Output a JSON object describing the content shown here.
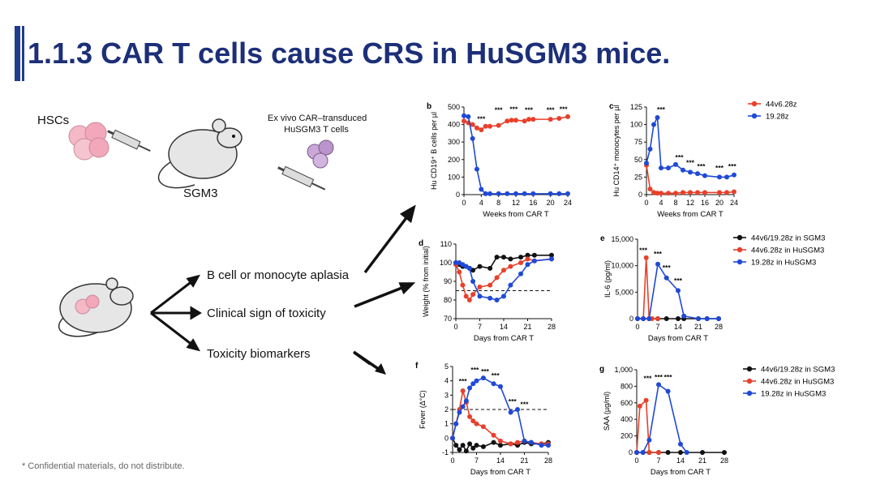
{
  "slide": {
    "title": "1.1.3 CAR T cells cause CRS in HuSGM3 mice.",
    "footnote": "* Confidential materials, do not distribute."
  },
  "diagram": {
    "hscs": "HSCs",
    "sgm3": "SGM3",
    "car_line1": "Ex vivo CAR–transduced",
    "car_line2": "HuSGM3 T cells",
    "outcomes": [
      "B cell or monocyte aplasia",
      "Clinical sign of toxicity",
      "Toxicity biomarkers"
    ]
  },
  "colors": {
    "red": "#e8402a",
    "blue": "#1f49d6",
    "black": "#111111",
    "title": "#1c2f78"
  },
  "chart_data": [
    {
      "panel": "b",
      "type": "line",
      "ylabel": "Hu CD19⁺ B cells per µl",
      "xlabel": "Weeks from CAR T",
      "xlim": [
        0,
        24
      ],
      "ylim": [
        0,
        500
      ],
      "xticks": [
        0,
        4,
        8,
        12,
        16,
        20,
        24
      ],
      "yticks": [
        0,
        100,
        200,
        300,
        400,
        500
      ],
      "series": [
        {
          "color": "red",
          "x": [
            0,
            1,
            2,
            3,
            4,
            5,
            6,
            8,
            10,
            11,
            12,
            14,
            15,
            16,
            20,
            22,
            24
          ],
          "y": [
            420,
            410,
            400,
            380,
            370,
            390,
            390,
            395,
            420,
            425,
            425,
            420,
            430,
            430,
            430,
            435,
            445
          ]
        },
        {
          "color": "blue",
          "x": [
            0,
            1,
            2,
            3,
            4,
            5,
            6,
            8,
            10,
            12,
            14,
            16,
            20,
            22,
            24
          ],
          "y": [
            450,
            445,
            320,
            145,
            30,
            5,
            5,
            5,
            5,
            5,
            5,
            5,
            5,
            5,
            5
          ]
        }
      ],
      "annotations": [
        {
          "x": 4,
          "y": 420,
          "text": "***"
        },
        {
          "x": 8,
          "y": 470,
          "text": "***"
        },
        {
          "x": 11.5,
          "y": 475,
          "text": "***"
        },
        {
          "x": 15,
          "y": 470,
          "text": "***"
        },
        {
          "x": 20,
          "y": 470,
          "text": "***"
        },
        {
          "x": 23,
          "y": 475,
          "text": "***"
        }
      ]
    },
    {
      "panel": "c",
      "type": "line",
      "ylabel": "Hu CD14⁺ monocytes per µl",
      "xlabel": "Weeks from CAR T",
      "xlim": [
        0,
        24
      ],
      "ylim": [
        0,
        125
      ],
      "xticks": [
        0,
        4,
        8,
        12,
        16,
        20,
        24
      ],
      "yticks": [
        0,
        25,
        50,
        75,
        100,
        125
      ],
      "legend": [
        {
          "label": "44v6.28z",
          "color": "red"
        },
        {
          "label": "19.28z",
          "color": "blue"
        }
      ],
      "series": [
        {
          "color": "red",
          "x": [
            0,
            1,
            2,
            3,
            4,
            6,
            8,
            10,
            12,
            14,
            16,
            20,
            22,
            24
          ],
          "y": [
            42,
            8,
            3,
            2,
            2,
            2,
            2,
            3,
            3,
            3,
            3,
            3,
            3,
            4
          ]
        },
        {
          "color": "blue",
          "x": [
            0,
            1,
            2,
            3,
            4,
            6,
            8,
            10,
            12,
            14,
            16,
            20,
            22,
            24
          ],
          "y": [
            45,
            65,
            100,
            110,
            38,
            38,
            43,
            35,
            32,
            30,
            27,
            25,
            25,
            28
          ]
        }
      ],
      "annotations": [
        {
          "x": 4,
          "y": 118,
          "text": "***"
        },
        {
          "x": 9,
          "y": 50,
          "text": "***"
        },
        {
          "x": 12,
          "y": 42,
          "text": "***"
        },
        {
          "x": 15,
          "y": 37,
          "text": "***"
        },
        {
          "x": 20,
          "y": 35,
          "text": "***"
        },
        {
          "x": 23.5,
          "y": 37,
          "text": "***"
        }
      ]
    },
    {
      "panel": "d",
      "type": "line",
      "ylabel": "Weight (% from initial)",
      "xlabel": "Days from CAR T",
      "xlim": [
        0,
        28
      ],
      "ylim": [
        70,
        110
      ],
      "xticks": [
        0,
        7,
        14,
        21,
        28
      ],
      "yticks": [
        70,
        80,
        90,
        100,
        110
      ],
      "reference_line": 85,
      "series": [
        {
          "color": "black",
          "x": [
            0,
            1,
            2,
            3,
            4,
            5,
            7,
            10,
            12,
            14,
            16,
            19,
            21,
            23,
            28
          ],
          "y": [
            100,
            99,
            98,
            98,
            97,
            96,
            98,
            97,
            103,
            103,
            102,
            103,
            104,
            104,
            104
          ]
        },
        {
          "color": "red",
          "x": [
            0,
            1,
            2,
            3,
            4,
            5,
            7,
            10,
            12,
            14,
            16,
            19,
            21,
            23,
            28
          ],
          "y": [
            99,
            95,
            88,
            82,
            80,
            83,
            87,
            88,
            92,
            96,
            98,
            100,
            102,
            101,
            102
          ]
        },
        {
          "color": "blue",
          "x": [
            0,
            1,
            2,
            3,
            4,
            5,
            7,
            10,
            12,
            14,
            16,
            19,
            21,
            23,
            28
          ],
          "y": [
            100,
            100,
            99,
            98,
            97,
            90,
            82,
            81,
            80,
            82,
            88,
            94,
            99,
            101,
            102
          ]
        }
      ]
    },
    {
      "panel": "e",
      "type": "line",
      "ylabel": "IL-6 (pg/ml)",
      "xlabel": "Days from CAR T",
      "xlim": [
        0,
        28
      ],
      "ylim": [
        0,
        15000
      ],
      "xticks": [
        0,
        7,
        14,
        21,
        28
      ],
      "yticks": [
        0,
        5000,
        10000,
        15000
      ],
      "legend": [
        {
          "label": "44v6/19.28z in SGM3",
          "color": "black"
        },
        {
          "label": "44v6.28z in HuSGM3",
          "color": "red"
        },
        {
          "label": "19.28z in HuSGM3",
          "color": "blue"
        }
      ],
      "series": [
        {
          "color": "black",
          "x": [
            0,
            2,
            4,
            7,
            10,
            14,
            16,
            21,
            24,
            28
          ],
          "y": [
            0,
            0,
            0,
            0,
            0,
            0,
            0,
            0,
            0,
            0
          ]
        },
        {
          "color": "red",
          "x": [
            0,
            2,
            3,
            4,
            5,
            7
          ],
          "y": [
            0,
            0,
            11500,
            0,
            0,
            0
          ]
        },
        {
          "color": "blue",
          "x": [
            0,
            2,
            4,
            7,
            10,
            14,
            16,
            21,
            24,
            28
          ],
          "y": [
            0,
            0,
            0,
            10300,
            7700,
            5300,
            500,
            0,
            0,
            0
          ]
        }
      ],
      "annotations": [
        {
          "x": 2,
          "y": 12500,
          "text": "***"
        },
        {
          "x": 7,
          "y": 11800,
          "text": "***"
        },
        {
          "x": 10,
          "y": 9200,
          "text": "***"
        },
        {
          "x": 14,
          "y": 6700,
          "text": "***"
        }
      ]
    },
    {
      "panel": "f",
      "type": "line",
      "ylabel": "Fever (Δ°C)",
      "xlabel": "Days from CAR T",
      "xlim": [
        0,
        28
      ],
      "ylim": [
        -1,
        5
      ],
      "xticks": [
        0,
        7,
        14,
        21,
        28
      ],
      "yticks": [
        -1,
        0,
        1,
        2,
        3,
        4,
        5
      ],
      "reference_line": 2,
      "series": [
        {
          "color": "black",
          "x": [
            0,
            1,
            2,
            3,
            4,
            5,
            6,
            7,
            9,
            12,
            14,
            17,
            19,
            21,
            23,
            26,
            28
          ],
          "y": [
            0,
            -0.5,
            -0.8,
            -0.5,
            -0.9,
            -0.4,
            -0.7,
            -0.5,
            -0.6,
            -0.3,
            -0.5,
            -0.4,
            -0.5,
            -0.3,
            -0.4,
            -0.4,
            -0.3
          ]
        },
        {
          "color": "red",
          "x": [
            0,
            1,
            2,
            3,
            4,
            5,
            6,
            7,
            9,
            12,
            14,
            17,
            19,
            21,
            23,
            26,
            28
          ],
          "y": [
            0,
            1,
            2,
            3.3,
            2.5,
            1.5,
            1.2,
            1,
            0.8,
            0.2,
            -0.2,
            -0.4,
            -0.3,
            -0.2,
            -0.3,
            -0.4,
            -0.4
          ]
        },
        {
          "color": "blue",
          "x": [
            0,
            1,
            2,
            3,
            4,
            5,
            6,
            7,
            9,
            12,
            14,
            17,
            19,
            21,
            23,
            26,
            28
          ],
          "y": [
            0,
            1,
            1.8,
            2.2,
            2.6,
            3.5,
            3.8,
            4.0,
            4.2,
            3.8,
            3.6,
            1.8,
            2.0,
            -0.2,
            -0.3,
            -0.5,
            -0.5
          ]
        }
      ],
      "annotations": [
        {
          "x": 3,
          "y": 3.8,
          "text": "***"
        },
        {
          "x": 6.5,
          "y": 4.6,
          "text": "***"
        },
        {
          "x": 9.5,
          "y": 4.5,
          "text": "***"
        },
        {
          "x": 12.5,
          "y": 4.2,
          "text": "***"
        },
        {
          "x": 17.5,
          "y": 2.4,
          "text": "***"
        },
        {
          "x": 21,
          "y": 2.2,
          "text": "***"
        }
      ]
    },
    {
      "panel": "g",
      "type": "line",
      "ylabel": "SAA (µg/ml)",
      "xlabel": "Days from CAR T",
      "xlim": [
        0,
        28
      ],
      "ylim": [
        0,
        1000
      ],
      "xticks": [
        0,
        7,
        14,
        21,
        28
      ],
      "yticks": [
        0,
        200,
        400,
        600,
        800,
        1000
      ],
      "legend": [
        {
          "label": "44v6/19.28z in SGM3",
          "color": "black"
        },
        {
          "label": "44v6.28z in HuSGM3",
          "color": "red"
        },
        {
          "label": "19.28z in HuSGM3",
          "color": "blue"
        }
      ],
      "series": [
        {
          "color": "black",
          "x": [
            0,
            2,
            4,
            7,
            10,
            14,
            21,
            28
          ],
          "y": [
            0,
            0,
            0,
            0,
            0,
            0,
            0,
            0
          ]
        },
        {
          "color": "red",
          "x": [
            0,
            1,
            3,
            4,
            7
          ],
          "y": [
            0,
            560,
            630,
            0,
            0
          ]
        },
        {
          "color": "blue",
          "x": [
            0,
            2,
            4,
            7,
            10,
            14,
            16
          ],
          "y": [
            0,
            0,
            150,
            820,
            740,
            100,
            0
          ]
        }
      ],
      "annotations": [
        {
          "x": 3.5,
          "y": 870,
          "text": "***"
        },
        {
          "x": 7,
          "y": 880,
          "text": "***"
        },
        {
          "x": 10,
          "y": 880,
          "text": "***"
        }
      ]
    }
  ]
}
